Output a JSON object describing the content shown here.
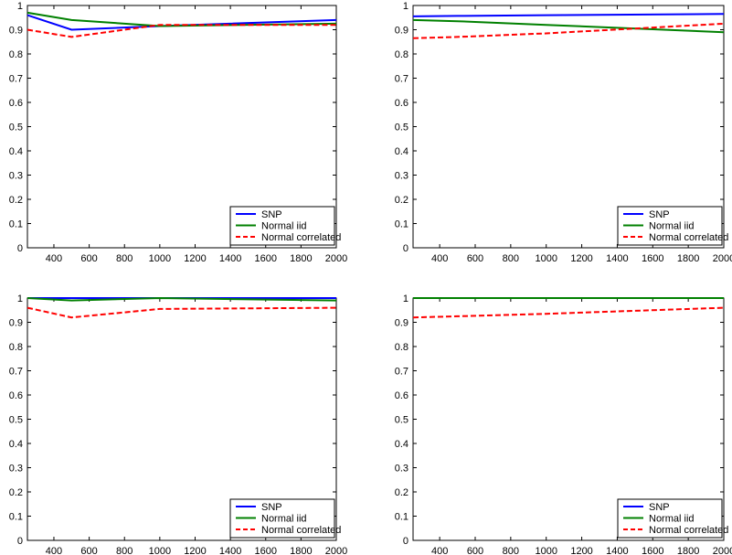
{
  "legend": {
    "entries": [
      {
        "label": "SNP",
        "color": "#0000ff",
        "style": "solid"
      },
      {
        "label": "Normal iid",
        "color": "#008000",
        "style": "solid"
      },
      {
        "label": "Normal correlated",
        "color": "#ff0000",
        "style": "dashed"
      }
    ],
    "placement": "bottom-right"
  },
  "chart_data": [
    {
      "type": "line",
      "x": [
        250,
        500,
        1000,
        2000
      ],
      "xlim": [
        250,
        2000
      ],
      "ylim": [
        0,
        1
      ],
      "xticks": [
        "400",
        "600",
        "800",
        "1000",
        "1200",
        "1400",
        "1600",
        "1800",
        "2000"
      ],
      "yticks": [
        "0",
        "0.1",
        "0.2",
        "0.3",
        "0.4",
        "0.5",
        "0.6",
        "0.7",
        "0.8",
        "0.9",
        "1"
      ],
      "grid": false,
      "series": [
        {
          "name": "SNP",
          "values": [
            0.96,
            0.9,
            0.915,
            0.94
          ]
        },
        {
          "name": "Normal iid",
          "values": [
            0.97,
            0.94,
            0.915,
            0.925
          ]
        },
        {
          "name": "Normal correlated",
          "values": [
            0.9,
            0.87,
            0.92,
            0.92
          ]
        }
      ]
    },
    {
      "type": "line",
      "x": [
        250,
        500,
        1000,
        2000
      ],
      "xlim": [
        250,
        2000
      ],
      "ylim": [
        0,
        1
      ],
      "xticks": [
        "400",
        "600",
        "800",
        "1000",
        "1200",
        "1400",
        "1600",
        "1800",
        "2000"
      ],
      "yticks": [
        "0",
        "0.1",
        "0.2",
        "0.3",
        "0.4",
        "0.5",
        "0.6",
        "0.7",
        "0.8",
        "0.9",
        "1"
      ],
      "grid": false,
      "series": [
        {
          "name": "SNP",
          "values": [
            0.955,
            0.957,
            0.96,
            0.965
          ]
        },
        {
          "name": "Normal iid",
          "values": [
            0.94,
            0.935,
            0.92,
            0.89
          ]
        },
        {
          "name": "Normal correlated",
          "values": [
            0.865,
            0.87,
            0.885,
            0.925
          ]
        }
      ]
    },
    {
      "type": "line",
      "x": [
        250,
        500,
        1000,
        2000
      ],
      "xlim": [
        250,
        2000
      ],
      "ylim": [
        0,
        1
      ],
      "xticks": [
        "400",
        "600",
        "800",
        "1000",
        "1200",
        "1400",
        "1600",
        "1800",
        "2000"
      ],
      "yticks": [
        "0",
        "0.1",
        "0.2",
        "0.3",
        "0.4",
        "0.5",
        "0.6",
        "0.7",
        "0.8",
        "0.9",
        "1"
      ],
      "grid": false,
      "series": [
        {
          "name": "SNP",
          "values": [
            1.0,
            1.0,
            1.0,
            1.0
          ]
        },
        {
          "name": "Normal iid",
          "values": [
            1.0,
            0.99,
            1.0,
            0.99
          ]
        },
        {
          "name": "Normal correlated",
          "values": [
            0.96,
            0.92,
            0.955,
            0.96
          ]
        }
      ]
    },
    {
      "type": "line",
      "x": [
        250,
        500,
        1000,
        2000
      ],
      "xlim": [
        250,
        2000
      ],
      "ylim": [
        0,
        1
      ],
      "xticks": [
        "400",
        "600",
        "800",
        "1000",
        "1200",
        "1400",
        "1600",
        "1800",
        "2000"
      ],
      "yticks": [
        "0",
        "0.1",
        "0.2",
        "0.3",
        "0.4",
        "0.5",
        "0.6",
        "0.7",
        "0.8",
        "0.9",
        "1"
      ],
      "grid": false,
      "series": [
        {
          "name": "SNP",
          "values": [
            1.0,
            1.0,
            1.0,
            1.0
          ]
        },
        {
          "name": "Normal iid",
          "values": [
            1.0,
            1.0,
            1.0,
            1.0
          ]
        },
        {
          "name": "Normal correlated",
          "values": [
            0.92,
            0.925,
            0.935,
            0.96
          ]
        }
      ]
    }
  ]
}
